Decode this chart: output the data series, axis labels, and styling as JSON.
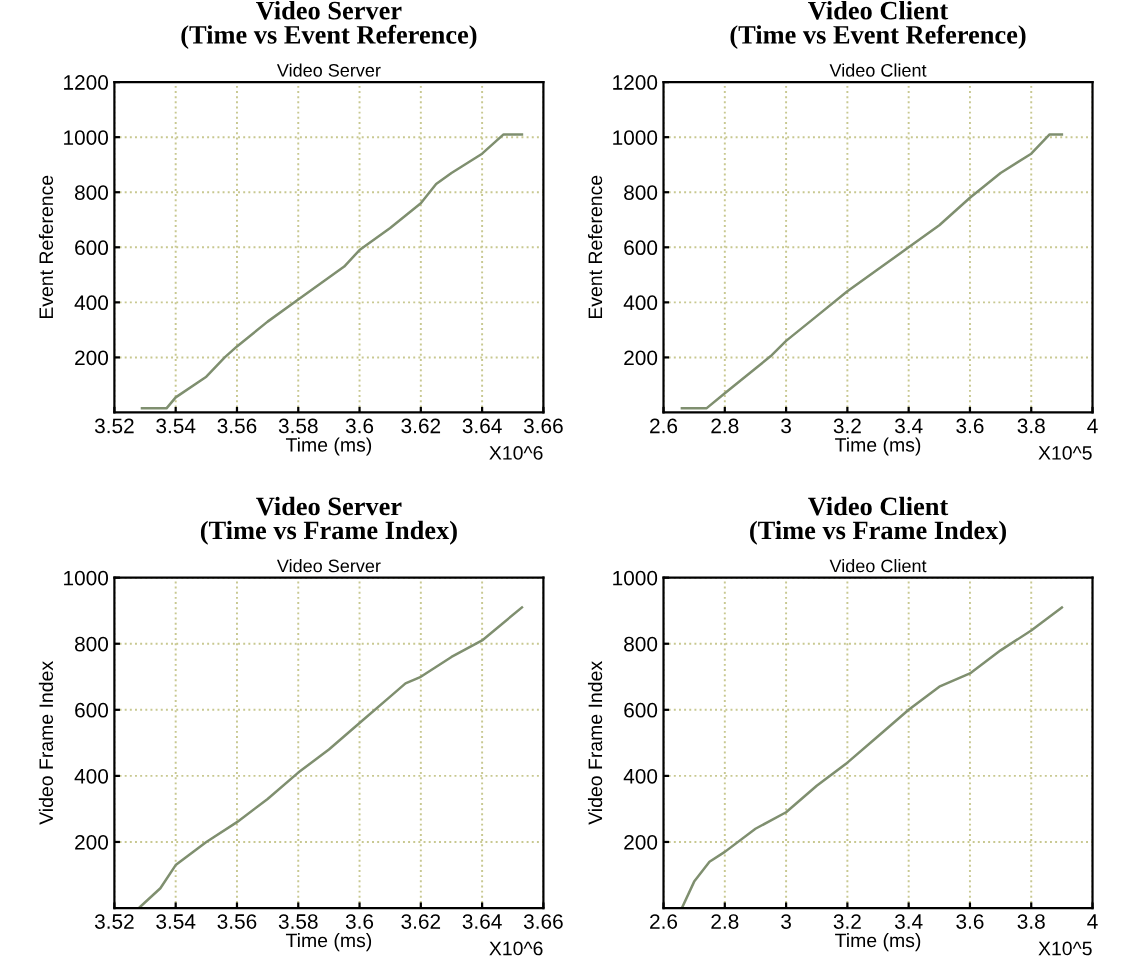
{
  "chart_data": [
    {
      "type": "line",
      "title": "Video Server\n(Time vs Event Reference)",
      "subtitle": "Video Server",
      "xlabel": "Time (ms)",
      "ylabel": "Event Reference",
      "annotations": [
        "X10^6"
      ],
      "grid": true,
      "marker": "none",
      "line_style": "solid",
      "x": [
        3.529,
        3.537,
        3.54,
        3.55,
        3.556,
        3.56,
        3.57,
        3.58,
        3.59,
        3.595,
        3.6,
        3.61,
        3.62,
        3.625,
        3.63,
        3.64,
        3.647,
        3.653
      ],
      "series": [
        {
          "color": "#7f8f6f",
          "values": [
            15,
            15,
            55,
            130,
            200,
            240,
            330,
            410,
            490,
            530,
            590,
            670,
            760,
            830,
            870,
            940,
            1010,
            1010
          ]
        }
      ],
      "xlim": [
        3.52,
        3.66
      ],
      "xticks": [
        3.52,
        3.54,
        3.56,
        3.58,
        3.6,
        3.62,
        3.64,
        3.66
      ],
      "ylim": [
        0,
        1200
      ],
      "yticks": [
        200,
        400,
        600,
        800,
        1000,
        1200
      ]
    },
    {
      "type": "line",
      "title": "Video Client\n(Time vs Event Reference)",
      "subtitle": "Video Client",
      "xlabel": "Time (ms)",
      "ylabel": "Event Reference",
      "annotations": [
        "X10^5"
      ],
      "grid": true,
      "marker": "none",
      "line_style": "solid",
      "x": [
        2.66,
        2.74,
        2.8,
        2.9,
        2.95,
        3.0,
        3.1,
        3.2,
        3.3,
        3.4,
        3.5,
        3.6,
        3.7,
        3.8,
        3.86,
        3.9
      ],
      "series": [
        {
          "color": "#7f8f6f",
          "values": [
            15,
            15,
            70,
            160,
            205,
            260,
            350,
            440,
            520,
            600,
            680,
            780,
            870,
            940,
            1010,
            1010
          ]
        }
      ],
      "xlim": [
        2.6,
        4
      ],
      "xticks": [
        2.6,
        2.8,
        3,
        3.2,
        3.4,
        3.6,
        3.8,
        4
      ],
      "ylim": [
        0,
        1200
      ],
      "yticks": [
        200,
        400,
        600,
        800,
        1000,
        1200
      ]
    },
    {
      "type": "line",
      "title": "Video Server\n(Time vs Frame Index)",
      "subtitle": "Video Server",
      "xlabel": "Time (ms)",
      "ylabel": "Video Frame Index",
      "annotations": [
        "X10^6"
      ],
      "grid": true,
      "marker": "none",
      "line_style": "solid",
      "x": [
        3.528,
        3.535,
        3.54,
        3.55,
        3.56,
        3.57,
        3.58,
        3.59,
        3.6,
        3.61,
        3.615,
        3.62,
        3.63,
        3.64,
        3.653
      ],
      "series": [
        {
          "color": "#7f8f6f",
          "values": [
            0,
            60,
            130,
            200,
            260,
            330,
            410,
            480,
            560,
            640,
            680,
            700,
            760,
            810,
            910
          ]
        }
      ],
      "xlim": [
        3.52,
        3.66
      ],
      "xticks": [
        3.52,
        3.54,
        3.56,
        3.58,
        3.6,
        3.62,
        3.64,
        3.66
      ],
      "ylim": [
        0,
        1000
      ],
      "yticks": [
        200,
        400,
        600,
        800,
        1000
      ]
    },
    {
      "type": "line",
      "title": "Video Client\n(Time vs Frame Index)",
      "subtitle": "Video Client",
      "xlabel": "Time (ms)",
      "ylabel": "Video Frame Index",
      "annotations": [
        "X10^5"
      ],
      "grid": true,
      "marker": "none",
      "line_style": "solid",
      "x": [
        2.66,
        2.7,
        2.75,
        2.8,
        2.9,
        3.0,
        3.1,
        3.2,
        3.3,
        3.4,
        3.5,
        3.6,
        3.7,
        3.8,
        3.9
      ],
      "series": [
        {
          "color": "#7f8f6f",
          "values": [
            0,
            80,
            140,
            170,
            240,
            290,
            370,
            440,
            520,
            600,
            670,
            710,
            780,
            840,
            910
          ]
        }
      ],
      "xlim": [
        2.6,
        4
      ],
      "xticks": [
        2.6,
        2.8,
        3,
        3.2,
        3.4,
        3.6,
        3.8,
        4
      ],
      "ylim": [
        0,
        1000
      ],
      "yticks": [
        200,
        400,
        600,
        800,
        1000
      ]
    }
  ]
}
